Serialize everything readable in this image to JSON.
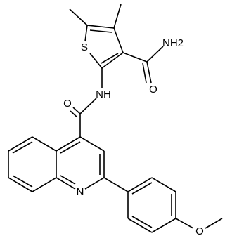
{
  "atoms": {
    "sulfur": "S",
    "amide_nh2": "NH2",
    "amide_o": "O",
    "linker_nh": "NH",
    "linker_o": "O",
    "quinoline_n": "N",
    "methoxy_o": "O"
  }
}
